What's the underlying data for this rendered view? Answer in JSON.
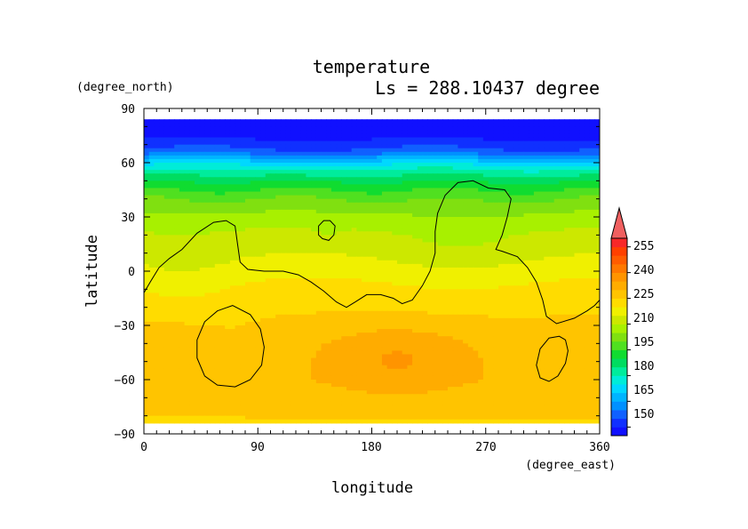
{
  "chart_data": {
    "type": "heatmap",
    "title": "temperature",
    "subtitle": "Ls = 288.10437 degree",
    "xlabel": "longitude",
    "ylabel": "latitude",
    "xunit": "(degree_east)",
    "yunit": "(degree_north)",
    "xlim": [
      0,
      360
    ],
    "ylim": [
      -90,
      90
    ],
    "x_ticks": [
      "0",
      "90",
      "180",
      "270",
      "360"
    ],
    "y_ticks": [
      "90",
      "60",
      "30",
      "0",
      "−30",
      "−60",
      "−90"
    ],
    "colorbar": {
      "labels": [
        "255",
        "240",
        "225",
        "210",
        "195",
        "180",
        "165",
        "150"
      ],
      "levels": [
        145,
        150,
        155,
        160,
        165,
        170,
        175,
        180,
        185,
        190,
        195,
        200,
        205,
        210,
        215,
        220,
        225,
        230,
        235,
        240,
        245,
        250,
        255,
        260
      ],
      "colors": [
        "#1010ff",
        "#1030ff",
        "#1060ff",
        "#0090ff",
        "#00b4ff",
        "#00d8ff",
        "#00ecd8",
        "#00ec9c",
        "#00dc60",
        "#10dc30",
        "#50e020",
        "#80e010",
        "#a8f000",
        "#cce800",
        "#f0f000",
        "#ffdc00",
        "#ffc400",
        "#ffac00",
        "#ff9400",
        "#ff7800",
        "#ff5c00",
        "#ff4000",
        "#f82828"
      ],
      "over_color": "#f06060"
    },
    "data_lat_range": [
      -84,
      84
    ],
    "zonal_profile": [
      {
        "lat": 84,
        "t": 145
      },
      {
        "lat": 75,
        "t": 148
      },
      {
        "lat": 66,
        "t": 157
      },
      {
        "lat": 60,
        "t": 172
      },
      {
        "lat": 55,
        "t": 182
      },
      {
        "lat": 48,
        "t": 192
      },
      {
        "lat": 40,
        "t": 200
      },
      {
        "lat": 30,
        "t": 207
      },
      {
        "lat": 20,
        "t": 212
      },
      {
        "lat": 10,
        "t": 215
      },
      {
        "lat": 0,
        "t": 219
      },
      {
        "lat": -10,
        "t": 222
      },
      {
        "lat": -20,
        "t": 224
      },
      {
        "lat": -28,
        "t": 226
      },
      {
        "lat": -40,
        "t": 228
      },
      {
        "lat": -60,
        "t": 229
      },
      {
        "lat": -75,
        "t": 227
      },
      {
        "lat": -84,
        "t": 224
      }
    ],
    "contour_level": 215
  }
}
